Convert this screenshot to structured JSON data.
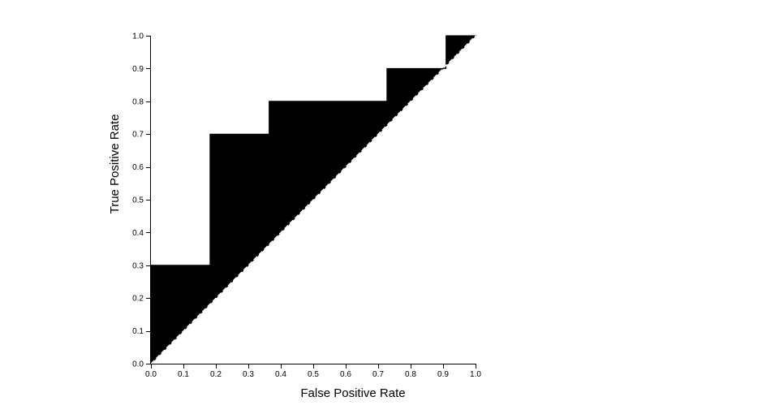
{
  "chart_data": {
    "type": "area",
    "xlabel": "False Positive Rate",
    "ylabel": "True Positive Rate",
    "xlim": [
      0,
      1
    ],
    "ylim": [
      0,
      1
    ],
    "x_ticks": [
      "0.0",
      "0.1",
      "0.2",
      "0.3",
      "0.4",
      "0.5",
      "0.6",
      "0.7",
      "0.8",
      "0.9",
      "1.0"
    ],
    "y_ticks": [
      "0.0",
      "0.1",
      "0.2",
      "0.3",
      "0.4",
      "0.5",
      "0.6",
      "0.7",
      "0.8",
      "0.9",
      "1.0"
    ],
    "grid": false,
    "legend": "none",
    "roc_curve": {
      "x": [
        0.0,
        0.0,
        0.182,
        0.182,
        0.364,
        0.364,
        0.727,
        0.727,
        0.909,
        0.909,
        1.0
      ],
      "y": [
        0.0,
        0.3,
        0.3,
        0.7,
        0.7,
        0.8,
        0.8,
        0.9,
        0.9,
        1.0,
        1.0
      ]
    },
    "baseline": {
      "x": [
        0.0,
        1.0
      ],
      "y": [
        0.0,
        1.0
      ]
    },
    "fill_color": "#000000",
    "axis_color": "#000000"
  }
}
